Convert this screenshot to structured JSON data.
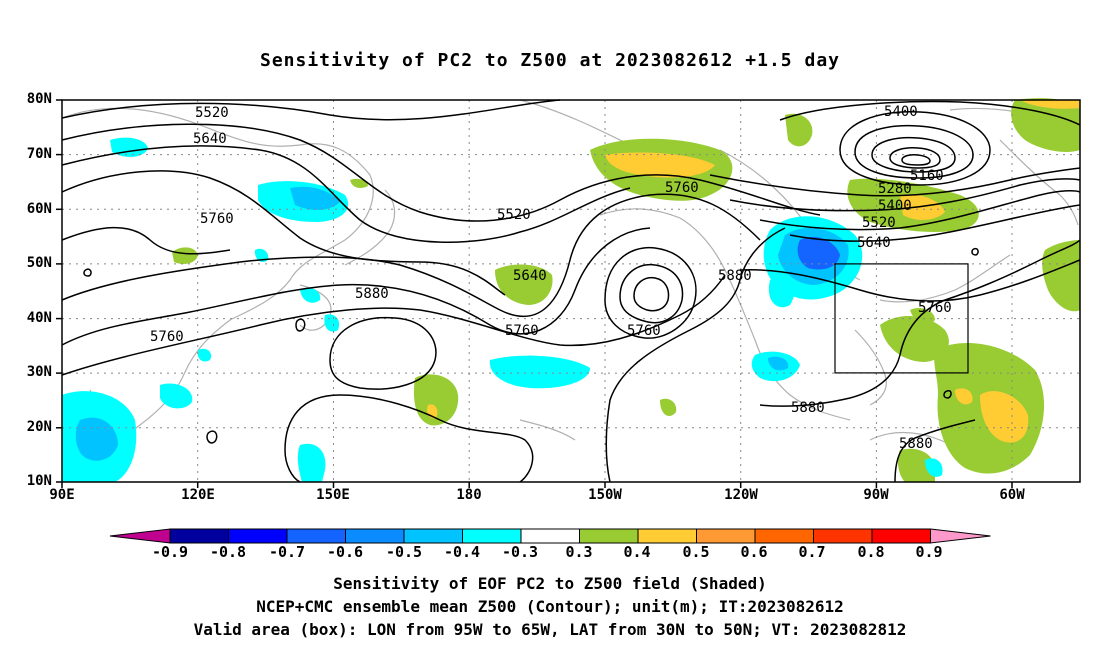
{
  "title": "Sensitivity of PC2 to Z500 at 2023082612 +1.5 day",
  "lat_labels": [
    "80N",
    "70N",
    "60N",
    "50N",
    "40N",
    "30N",
    "20N",
    "10N"
  ],
  "lon_labels": [
    "90E",
    "120E",
    "150E",
    "180",
    "150W",
    "120W",
    "90W",
    "60W"
  ],
  "colorbar": {
    "labels": [
      "-0.9",
      "-0.8",
      "-0.7",
      "-0.6",
      "-0.5",
      "-0.4",
      "-0.3",
      "0.3",
      "0.4",
      "0.5",
      "0.6",
      "0.7",
      "0.8",
      "0.9"
    ],
    "colors": [
      "#c0008e",
      "#00009e",
      "#0000ff",
      "#1464ff",
      "#0a8cff",
      "#00c3ff",
      "#00ffff",
      "#ffffff",
      "#99cc33",
      "#ffcc33",
      "#ff9933",
      "#ff6600",
      "#ff3300",
      "#ff0000",
      "#ff99cc"
    ]
  },
  "contour_labels": {
    "c5520a": "5520",
    "c5640a": "5640",
    "c5760a": "5760",
    "c5520b": "5520",
    "c5640b": "5640",
    "c5760b": "5760",
    "c5880a": "5880",
    "c5760c": "5760",
    "c5760d": "5760",
    "c5760e": "5760",
    "c5880b": "5880",
    "c5400": "5400",
    "c5160": "5160",
    "c5280": "5280",
    "c5400b": "5400",
    "c5520c": "5520",
    "c5640c": "5640",
    "c5760f": "5760",
    "c5880c": "5880",
    "c5880d": "5880"
  },
  "captions": [
    "Sensitivity of EOF PC2 to Z500 field (Shaded)",
    "NCEP+CMC ensemble mean Z500 (Contour); unit(m); IT:2023082612",
    "Valid area (box): LON from 95W to 65W, LAT from 30N to 50N; VT: 2023082812"
  ]
}
